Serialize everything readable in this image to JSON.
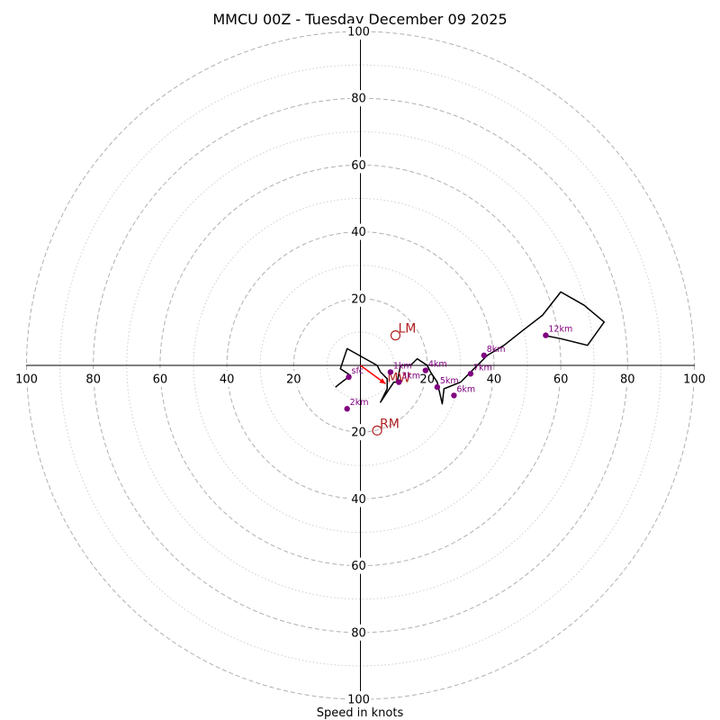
{
  "chart_data": {
    "type": "hodograph",
    "title": "MMCU 00Z - Tuesday December 09 2025",
    "xlabel": "Speed in knots",
    "units": "knots",
    "range": [
      -100,
      100
    ],
    "major_rings": [
      20,
      40,
      60,
      80,
      100
    ],
    "minor_rings": [
      10,
      30,
      50,
      70,
      90
    ],
    "x_ticks": [
      {
        "value": -100,
        "label": "100"
      },
      {
        "value": -80,
        "label": "80"
      },
      {
        "value": -60,
        "label": "60"
      },
      {
        "value": -40,
        "label": "40"
      },
      {
        "value": -20,
        "label": "20"
      },
      {
        "value": 20,
        "label": "20"
      },
      {
        "value": 40,
        "label": "40"
      },
      {
        "value": 60,
        "label": "60"
      },
      {
        "value": 80,
        "label": "80"
      },
      {
        "value": 100,
        "label": "100"
      }
    ],
    "y_ticks": [
      {
        "value": 100,
        "label": "100"
      },
      {
        "value": 80,
        "label": "80"
      },
      {
        "value": 60,
        "label": "60"
      },
      {
        "value": 40,
        "label": "40"
      },
      {
        "value": 20,
        "label": "20"
      },
      {
        "value": -20,
        "label": "20"
      },
      {
        "value": -40,
        "label": "40"
      },
      {
        "value": -60,
        "label": "60"
      },
      {
        "value": -80,
        "label": "80"
      },
      {
        "value": -100,
        "label": "100"
      }
    ],
    "hodograph": {
      "u": [
        -7.5,
        -3,
        -6,
        -4,
        5,
        6,
        8,
        8,
        6,
        10,
        11,
        12,
        15,
        17,
        20,
        21,
        23,
        24.5,
        25,
        30,
        34,
        38,
        43,
        48,
        54.5,
        60,
        67,
        73,
        68,
        60,
        55
      ],
      "v": [
        -6.5,
        -3,
        -1,
        5,
        0,
        -2,
        -4,
        -7,
        -11,
        -5,
        -5,
        0,
        0,
        2,
        0,
        -2,
        -5,
        -11.5,
        -7,
        -5,
        -1,
        3,
        6,
        10,
        15,
        22,
        18,
        13,
        6,
        8,
        9
      ]
    },
    "height_markers": [
      {
        "label": "sfc",
        "u": -3.5,
        "v": -3.5
      },
      {
        "label": "1km",
        "u": 9,
        "v": -2
      },
      {
        "label": "3km",
        "u": 11.5,
        "v": -5
      },
      {
        "label": "2km",
        "u": -4,
        "v": -13
      },
      {
        "label": "4km",
        "u": 19.5,
        "v": -1.5
      },
      {
        "label": "5km",
        "u": 23,
        "v": -6.5
      },
      {
        "label": "6km",
        "u": 28,
        "v": -9
      },
      {
        "label": "7km",
        "u": 33,
        "v": -2.5
      },
      {
        "label": "8km",
        "u": 37,
        "v": 3
      },
      {
        "label": "12km",
        "u": 55.5,
        "v": 9
      }
    ],
    "storm_motion": [
      {
        "label": "LM",
        "u": 10.5,
        "v": 9
      },
      {
        "label": "RM",
        "u": 5,
        "v": -19.5
      }
    ],
    "mean_wind": {
      "label": "MW",
      "u": 7.5,
      "v": -5.5,
      "from_u": 0,
      "from_v": 0
    }
  }
}
